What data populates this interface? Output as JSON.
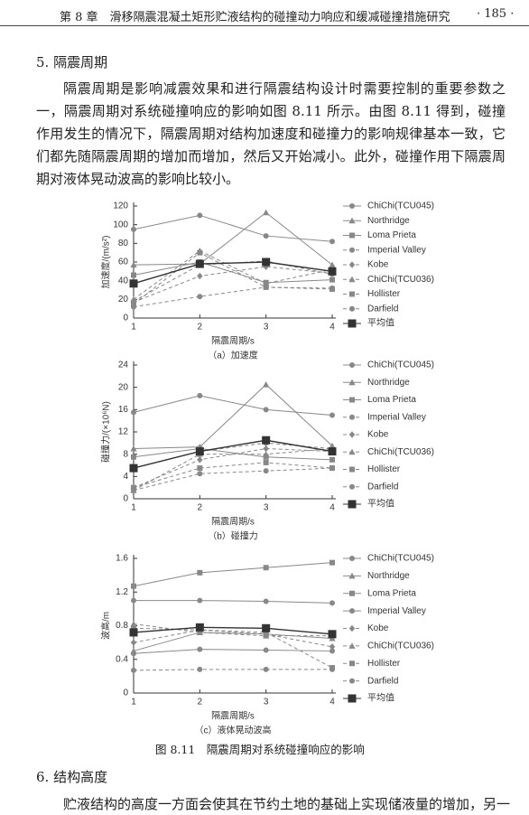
{
  "header": {
    "chapter": "第 8 章　滑移隔震混凝土矩形贮液结构的碰撞动力响应和缓减碰撞措施研究",
    "page": "· 185 ·"
  },
  "section_5": "5. 隔震周期",
  "paragraph": "隔震周期是影响减震效果和进行隔震结构设计时需要控制的重要参数之一，隔震周期对系统碰撞响应的影响如图 8.11 所示。由图 8.11 得到，碰撞作用发生的情况下，隔震周期对结构加速度和碰撞力的影响规律基本一致，它们都先随隔震周期的增加而增加，然后又开始减小。此外，碰撞作用下隔震周期对液体晃动波高的影响比较小。",
  "figure_caption": "图 8.11　隔震周期对系统碰撞响应的影响",
  "section_6": "6. 结构高度",
  "last_line": "贮液结构的高度一方面会使其在节约土地的基础上实现储液量的增加，另一",
  "chart_data": [
    {
      "type": "line",
      "caption": "（a）加速度",
      "xlabel": "隔震周期/s",
      "ylabel": "加速度/(m/s²)",
      "x": [
        1,
        2,
        3,
        4
      ],
      "xlim": [
        1,
        4
      ],
      "xticks": [
        1,
        2,
        3,
        4
      ],
      "ylim": [
        0,
        120
      ],
      "yticks": [
        0,
        20,
        40,
        60,
        80,
        100,
        120
      ],
      "series": [
        {
          "name": "ChiChi(TCU045)",
          "color": "#888888",
          "marker": "circle",
          "dashed": false,
          "values": [
            95,
            110,
            88,
            82
          ]
        },
        {
          "name": "Northridge",
          "color": "#888888",
          "marker": "triangle",
          "dashed": false,
          "values": [
            57,
            58,
            113,
            57
          ]
        },
        {
          "name": "Loma Prieta",
          "color": "#888888",
          "marker": "square",
          "dashed": false,
          "values": [
            46,
            60,
            38,
            41
          ]
        },
        {
          "name": "Imperial Valley",
          "color": "#888888",
          "marker": "circle",
          "dashed": true,
          "values": [
            18,
            57,
            61,
            47
          ]
        },
        {
          "name": "Kobe",
          "color": "#888888",
          "marker": "diamond",
          "dashed": true,
          "values": [
            17,
            45,
            55,
            48
          ]
        },
        {
          "name": "ChiChi(TCU036)",
          "color": "#888888",
          "marker": "triangle",
          "dashed": true,
          "values": [
            20,
            72,
            37,
            52
          ]
        },
        {
          "name": "Hollister",
          "color": "#888888",
          "marker": "square",
          "dashed": true,
          "values": [
            15,
            70,
            33,
            31
          ]
        },
        {
          "name": "Darfield",
          "color": "#888888",
          "marker": "circle",
          "dashed": true,
          "values": [
            12,
            23,
            33,
            32
          ]
        },
        {
          "name": "平均值",
          "color": "#333333",
          "marker": "bigsquare",
          "dashed": false,
          "values": [
            37,
            58,
            60,
            50
          ]
        }
      ]
    },
    {
      "type": "line",
      "caption": "（b）碰撞力",
      "xlabel": "隔震周期/s",
      "ylabel": "碰撞力/(×10⁶N)",
      "x": [
        1,
        2,
        3,
        4
      ],
      "xlim": [
        1,
        4
      ],
      "xticks": [
        1,
        2,
        3,
        4
      ],
      "ylim": [
        0,
        24
      ],
      "yticks": [
        0,
        4,
        8,
        12,
        16,
        20,
        24
      ],
      "series": [
        {
          "name": "ChiChi(TCU045)",
          "color": "#888888",
          "marker": "circle",
          "dashed": false,
          "values": [
            15.5,
            18.5,
            16,
            15
          ]
        },
        {
          "name": "Northridge",
          "color": "#888888",
          "marker": "triangle",
          "dashed": false,
          "values": [
            9,
            9.3,
            20.5,
            9.5
          ]
        },
        {
          "name": "Loma Prieta",
          "color": "#888888",
          "marker": "square",
          "dashed": false,
          "values": [
            7.5,
            9,
            7.5,
            7
          ]
        },
        {
          "name": "Imperial Valley",
          "color": "#888888",
          "marker": "circle",
          "dashed": true,
          "values": [
            5.5,
            8.5,
            10,
            9
          ]
        },
        {
          "name": "Kobe",
          "color": "#888888",
          "marker": "diamond",
          "dashed": true,
          "values": [
            2,
            7,
            9,
            8.5
          ]
        },
        {
          "name": "ChiChi(TCU036)",
          "color": "#888888",
          "marker": "triangle",
          "dashed": true,
          "values": [
            1.5,
            8,
            8,
            9
          ]
        },
        {
          "name": "Hollister",
          "color": "#888888",
          "marker": "square",
          "dashed": true,
          "values": [
            2,
            5.5,
            6.5,
            5.5
          ]
        },
        {
          "name": "Darfield",
          "color": "#888888",
          "marker": "circle",
          "dashed": true,
          "values": [
            1.5,
            4.5,
            5,
            5.5
          ]
        },
        {
          "name": "平均值",
          "color": "#333333",
          "marker": "bigsquare",
          "dashed": false,
          "values": [
            5.5,
            8.5,
            10.5,
            8.5
          ]
        }
      ]
    },
    {
      "type": "line",
      "caption": "（c）液体晃动波高",
      "xlabel": "隔震周期/s",
      "ylabel": "波高/m",
      "x": [
        1,
        2,
        3,
        4
      ],
      "xlim": [
        1,
        4
      ],
      "xticks": [
        1,
        2,
        3,
        4
      ],
      "ylim": [
        0,
        1.6
      ],
      "yticks": [
        0,
        0.4,
        0.8,
        1.2,
        1.6
      ],
      "series": [
        {
          "name": "ChiChi(TCU045)",
          "color": "#888888",
          "marker": "circle",
          "dashed": false,
          "values": [
            1.1,
            1.1,
            1.09,
            1.07
          ]
        },
        {
          "name": "Northridge",
          "color": "#888888",
          "marker": "triangle",
          "dashed": false,
          "values": [
            0.5,
            0.72,
            0.7,
            0.65
          ]
        },
        {
          "name": "Loma Prieta",
          "color": "#888888",
          "marker": "square",
          "dashed": false,
          "values": [
            1.27,
            1.43,
            1.49,
            1.55
          ]
        },
        {
          "name": "Imperial Valley",
          "color": "#888888",
          "marker": "circle",
          "dashed": false,
          "values": [
            0.47,
            0.52,
            0.51,
            0.5
          ]
        },
        {
          "name": "Kobe",
          "color": "#888888",
          "marker": "diamond",
          "dashed": true,
          "values": [
            0.6,
            0.75,
            0.7,
            0.55
          ]
        },
        {
          "name": "ChiChi(TCU036)",
          "color": "#888888",
          "marker": "triangle",
          "dashed": true,
          "values": [
            0.82,
            0.72,
            0.68,
            0.68
          ]
        },
        {
          "name": "Hollister",
          "color": "#888888",
          "marker": "square",
          "dashed": true,
          "values": [
            0.77,
            0.75,
            0.72,
            0.3
          ]
        },
        {
          "name": "Darfield",
          "color": "#888888",
          "marker": "circle",
          "dashed": true,
          "values": [
            0.27,
            0.28,
            0.28,
            0.28
          ]
        },
        {
          "name": "平均值",
          "color": "#333333",
          "marker": "bigsquare",
          "dashed": false,
          "values": [
            0.72,
            0.78,
            0.77,
            0.7
          ]
        }
      ]
    }
  ]
}
